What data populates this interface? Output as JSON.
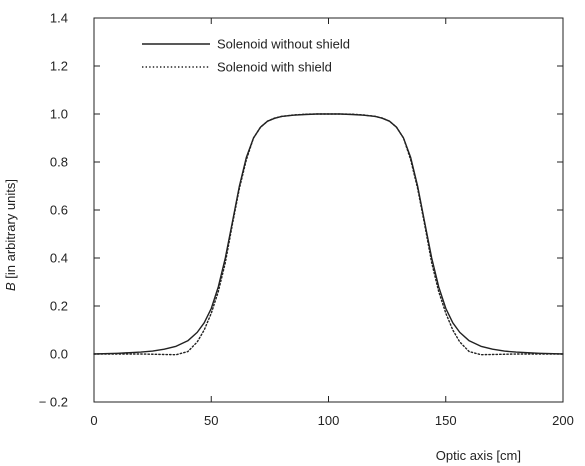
{
  "chart_data": {
    "type": "line",
    "title": "",
    "xlabel": "Optic axis [cm]",
    "ylabel_prefix": "B",
    "ylabel_suffix": " [in arbitrary units]",
    "xlim": [
      0,
      200
    ],
    "ylim": [
      -0.2,
      1.4
    ],
    "xticks": [
      0,
      50,
      100,
      150,
      200
    ],
    "xtick_labels": [
      "0",
      "50",
      "100",
      "150",
      "200"
    ],
    "yticks": [
      -0.2,
      0.0,
      0.2,
      0.4,
      0.6,
      0.8,
      1.0,
      1.2,
      1.4
    ],
    "ytick_labels": [
      "− 0.2",
      "0.0",
      "0.2",
      "0.4",
      "0.6",
      "0.8",
      "1.0",
      "1.2",
      "1.4"
    ],
    "grid": false,
    "legend_position": "top-left",
    "series": [
      {
        "name": "Solenoid without shield",
        "style": "solid",
        "color": "#222222",
        "x": [
          0,
          10,
          20,
          25,
          30,
          35,
          40,
          44,
          47,
          50,
          53,
          56,
          59,
          62,
          65,
          68,
          71,
          74,
          77,
          80,
          85,
          90,
          95,
          100,
          105,
          110,
          115,
          120,
          123,
          126,
          129,
          132,
          135,
          138,
          141,
          144,
          147,
          150,
          153,
          156,
          160,
          165,
          170,
          175,
          180,
          190,
          200
        ],
        "y": [
          0.0,
          0.003,
          0.008,
          0.012,
          0.02,
          0.032,
          0.055,
          0.09,
          0.13,
          0.19,
          0.28,
          0.4,
          0.55,
          0.7,
          0.82,
          0.9,
          0.945,
          0.97,
          0.982,
          0.99,
          0.995,
          0.998,
          1.0,
          1.0,
          1.0,
          0.998,
          0.995,
          0.99,
          0.982,
          0.97,
          0.945,
          0.9,
          0.82,
          0.7,
          0.55,
          0.4,
          0.28,
          0.19,
          0.13,
          0.09,
          0.055,
          0.032,
          0.02,
          0.012,
          0.008,
          0.003,
          0.0
        ]
      },
      {
        "name": "Solenoid with shield",
        "style": "dotted",
        "color": "#222222",
        "x": [
          0,
          20,
          30,
          35,
          40,
          44,
          47,
          50,
          53,
          56,
          59,
          62,
          65,
          68,
          71,
          74,
          77,
          80,
          85,
          90,
          95,
          100,
          105,
          110,
          115,
          120,
          123,
          126,
          129,
          132,
          135,
          138,
          141,
          144,
          147,
          150,
          153,
          156,
          160,
          165,
          170,
          180,
          200
        ],
        "y": [
          0.0,
          0.0,
          -0.002,
          -0.003,
          0.01,
          0.05,
          0.1,
          0.17,
          0.26,
          0.38,
          0.54,
          0.69,
          0.81,
          0.9,
          0.945,
          0.97,
          0.983,
          0.99,
          0.996,
          0.999,
          1.0,
          1.0,
          1.0,
          0.999,
          0.996,
          0.99,
          0.983,
          0.97,
          0.945,
          0.9,
          0.81,
          0.69,
          0.54,
          0.38,
          0.26,
          0.17,
          0.1,
          0.05,
          0.01,
          -0.003,
          -0.002,
          0.0,
          0.0
        ]
      }
    ]
  }
}
